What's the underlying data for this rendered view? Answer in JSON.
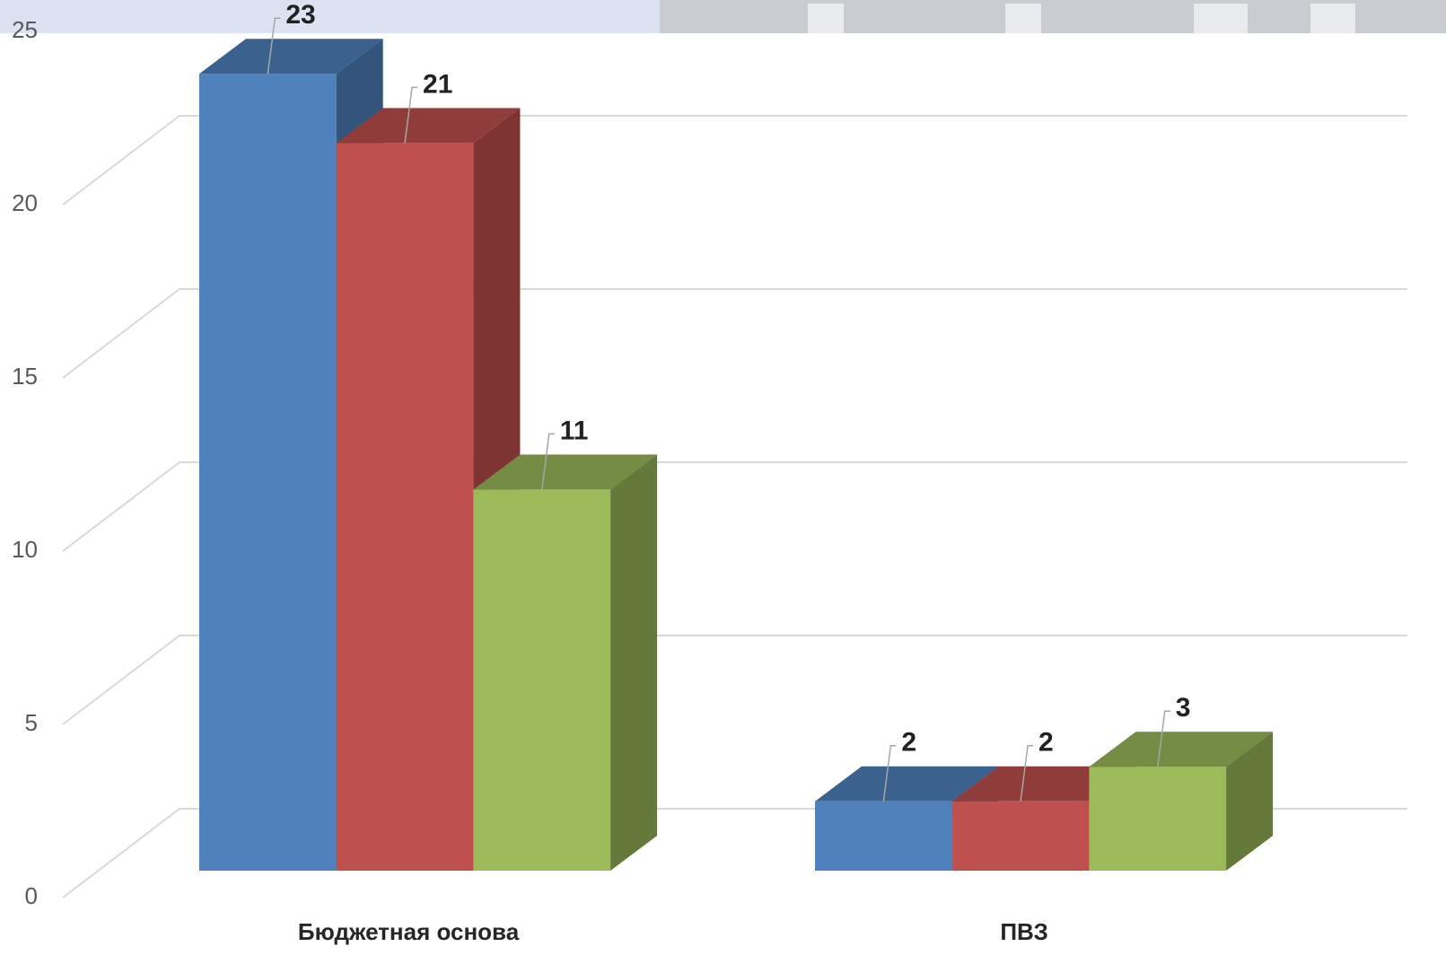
{
  "chart_data": {
    "type": "bar3d",
    "categories": [
      "Бюджетная основа",
      "ПВЗ"
    ],
    "series": [
      {
        "color": "#4f81bd",
        "values": [
          23,
          2
        ]
      },
      {
        "color": "#c0504d",
        "values": [
          21,
          2
        ]
      },
      {
        "color": "#9bbb59",
        "values": [
          11,
          3
        ]
      }
    ],
    "ylim": [
      0,
      25
    ],
    "yticks": [
      0,
      5,
      10,
      15,
      20,
      25
    ],
    "grid": true
  }
}
